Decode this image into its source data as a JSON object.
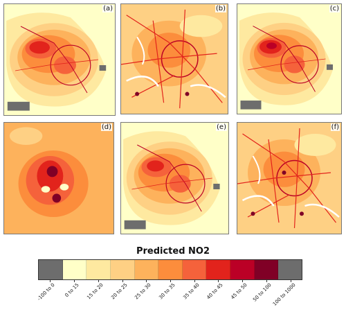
{
  "panels": [
    {
      "label": "(a)",
      "style": "smooth-city"
    },
    {
      "label": "(b)",
      "style": "roads"
    },
    {
      "label": "(c)",
      "style": "smooth-city-strong"
    },
    {
      "label": "(d)",
      "style": "coarse"
    },
    {
      "label": "(e)",
      "style": "smooth-city-light"
    },
    {
      "label": "(f)",
      "style": "roads-dense"
    }
  ],
  "legend": {
    "title": "Predicted NO2",
    "categories": [
      "-100 to 0",
      "0 to 15",
      "15 to 20",
      "20 to 25",
      "25 to 30",
      "30 to 35",
      "35 to 40",
      "40 to 45",
      "45 to 50",
      "50 to 100",
      "100 to 1000"
    ],
    "colors": [
      "#6d6d6d",
      "#ffffc8",
      "#fee9a0",
      "#fed084",
      "#fdb25c",
      "#fc8d3c",
      "#f5623b",
      "#e2231c",
      "#bb0026",
      "#800026",
      "#6d6d6d"
    ]
  }
}
